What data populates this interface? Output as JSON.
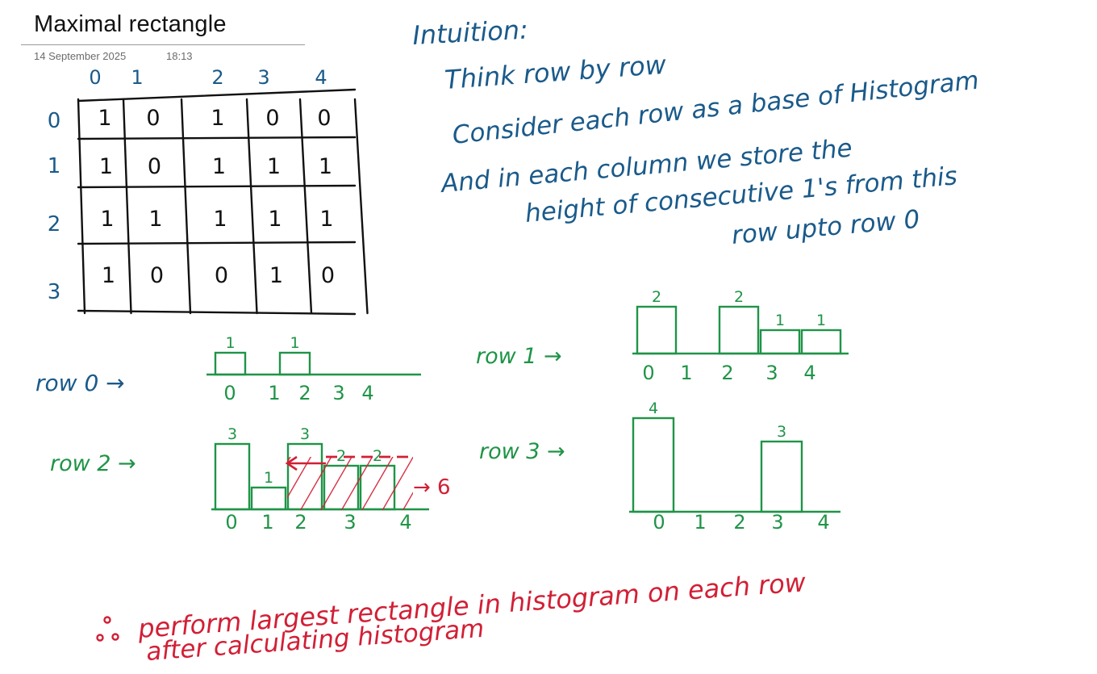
{
  "page": {
    "title": "Maximal rectangle",
    "date": "14 September 2025",
    "time": "18:13"
  },
  "matrix": {
    "col_labels": [
      "0",
      "1",
      "2",
      "3",
      "4"
    ],
    "row_labels": [
      "0",
      "1",
      "2",
      "3"
    ],
    "cells": [
      [
        "1",
        "0",
        "1",
        "0",
        "0"
      ],
      [
        "1",
        "0",
        "1",
        "1",
        "1"
      ],
      [
        "1",
        "1",
        "1",
        "1",
        "1"
      ],
      [
        "1",
        "0",
        "0",
        "1",
        "0"
      ]
    ]
  },
  "intuition": {
    "heading": "Intuition:",
    "lines": [
      "Think row by row",
      "Consider each row as a base of Histogram",
      "And in each column we store the",
      "height of consecutive 1's from this",
      "row upto row 0"
    ]
  },
  "histograms": [
    {
      "label": "row 0 →",
      "heights": [
        1,
        0,
        1,
        0,
        0
      ],
      "x_labels": [
        "0",
        "1",
        "2",
        "3",
        "4"
      ]
    },
    {
      "label": "row 1 →",
      "heights": [
        2,
        0,
        2,
        1,
        1
      ],
      "x_labels": [
        "0",
        "1",
        "2",
        "3",
        "4"
      ]
    },
    {
      "label": "row 2 →",
      "heights": [
        3,
        1,
        3,
        2,
        2
      ],
      "x_labels": [
        "0",
        "1",
        "2",
        "3",
        "4"
      ],
      "result": "→ 6"
    },
    {
      "label": "row 3 →",
      "heights": [
        4,
        0,
        0,
        3,
        0
      ],
      "x_labels": [
        "0",
        "1",
        "2",
        "3",
        "4"
      ]
    }
  ],
  "conclusion": {
    "line1": "perform largest rectangle in histogram on each row",
    "line2": "after calculating histogram"
  },
  "colors": {
    "intuition_ink": "#1a5a8a",
    "histogram_ink": "#1f9447",
    "highlight_ink": "#d21f35",
    "grid_ink": "#111111"
  }
}
